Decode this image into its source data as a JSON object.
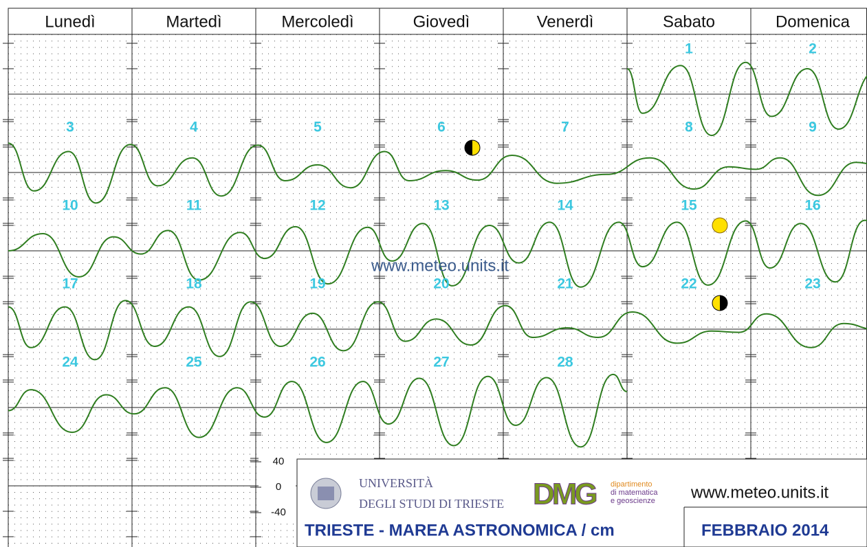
{
  "weekdays": [
    "Lunedì",
    "Martedì",
    "Mercoledì",
    "Giovedì",
    "Venerdì",
    "Sabato",
    "Domenica"
  ],
  "days": [
    {
      "label": "1",
      "curve": [
        [
          0,
          40
        ],
        [
          3,
          -30
        ],
        [
          10.4,
          45
        ],
        [
          16.4,
          -65
        ],
        [
          23,
          50
        ]
      ]
    },
    {
      "label": "2",
      "curve": [
        [
          4,
          -35
        ],
        [
          11,
          40
        ],
        [
          17,
          -55
        ],
        [
          24,
          35
        ]
      ]
    },
    {
      "label": "3",
      "curve": [
        [
          0,
          46
        ],
        [
          5,
          -29
        ],
        [
          11.7,
          33
        ],
        [
          17,
          -48
        ],
        [
          23.7,
          44
        ]
      ]
    },
    {
      "label": "4",
      "curve": [
        [
          5,
          -21
        ],
        [
          11.7,
          23
        ],
        [
          17.3,
          -37
        ]
      ]
    },
    {
      "label": "5",
      "curve": [
        [
          0.4,
          43
        ],
        [
          5.7,
          -13
        ],
        [
          12,
          12
        ],
        [
          18.4,
          -24
        ]
      ]
    },
    {
      "label": "6",
      "curve": [
        [
          1,
          33
        ],
        [
          5.7,
          -13
        ],
        [
          12.8,
          3
        ],
        [
          19,
          -12
        ]
      ]
    },
    {
      "label": "7",
      "curve": [
        [
          1.7,
          27
        ],
        [
          10.4,
          -17
        ],
        [
          20,
          -3
        ]
      ]
    },
    {
      "label": "8",
      "curve": [
        [
          4.4,
          23
        ],
        [
          13,
          -26
        ],
        [
          19.7,
          9
        ]
      ]
    },
    {
      "label": "9",
      "curve": [
        [
          1,
          5
        ],
        [
          5.7,
          23
        ],
        [
          13,
          -36
        ],
        [
          20.4,
          16
        ],
        [
          24,
          13
        ]
      ]
    },
    {
      "label": "10",
      "curve": [
        [
          0,
          0
        ],
        [
          6.7,
          27
        ],
        [
          13.7,
          -41
        ],
        [
          20.4,
          22
        ]
      ]
    },
    {
      "label": "11",
      "curve": [
        [
          1.7,
          -5
        ],
        [
          7,
          32
        ],
        [
          13,
          -46
        ],
        [
          21,
          29
        ]
      ]
    },
    {
      "label": "12",
      "curve": [
        [
          1.7,
          -12
        ],
        [
          7.7,
          38
        ],
        [
          14,
          -52
        ],
        [
          21.7,
          37
        ]
      ]
    },
    {
      "label": "13",
      "curve": [
        [
          2.4,
          -16
        ],
        [
          8.4,
          43
        ],
        [
          14.1,
          -55
        ],
        [
          21.3,
          40
        ]
      ]
    },
    {
      "label": "14",
      "curve": [
        [
          3,
          -19
        ],
        [
          9,
          45
        ],
        [
          15,
          -57
        ],
        [
          22.4,
          45
        ]
      ]
    },
    {
      "label": "15",
      "curve": [
        [
          3,
          -25
        ],
        [
          9.7,
          45
        ],
        [
          15.7,
          -54
        ],
        [
          23,
          47
        ]
      ]
    },
    {
      "label": "16",
      "curve": [
        [
          3.7,
          -27
        ],
        [
          9.7,
          43
        ],
        [
          16.4,
          -49
        ],
        [
          22.1,
          48
        ],
        [
          24,
          44
        ]
      ]
    },
    {
      "label": "17",
      "curve": [
        [
          0,
          35
        ],
        [
          4.4,
          -29
        ],
        [
          11,
          35
        ],
        [
          16.8,
          -48
        ],
        [
          22.7,
          45
        ]
      ]
    },
    {
      "label": "18",
      "curve": [
        [
          4.4,
          -27
        ],
        [
          11,
          35
        ],
        [
          17,
          -43
        ],
        [
          23,
          43
        ]
      ]
    },
    {
      "label": "19",
      "curve": [
        [
          4.8,
          -27
        ],
        [
          11,
          25
        ],
        [
          17,
          -34
        ],
        [
          23.7,
          43
        ]
      ]
    },
    {
      "label": "20",
      "curve": [
        [
          5,
          -19
        ],
        [
          11,
          16
        ],
        [
          17.7,
          -25
        ]
      ]
    },
    {
      "label": "21",
      "curve": [
        [
          0.4,
          37
        ],
        [
          5.7,
          -13
        ],
        [
          12.4,
          2
        ],
        [
          18.4,
          -13
        ]
      ]
    },
    {
      "label": "22",
      "curve": [
        [
          1,
          27
        ],
        [
          9.7,
          -22
        ],
        [
          16.4,
          -3
        ],
        [
          21.7,
          -5
        ]
      ]
    },
    {
      "label": "23",
      "curve": [
        [
          3,
          24
        ],
        [
          11.7,
          -29
        ],
        [
          18,
          9
        ],
        [
          24,
          0
        ]
      ]
    },
    {
      "label": "24",
      "curve": [
        [
          0,
          -5
        ],
        [
          4.4,
          28
        ],
        [
          12.4,
          -39
        ],
        [
          19,
          20
        ]
      ]
    },
    {
      "label": "25",
      "curve": [
        [
          0.4,
          -10
        ],
        [
          6.4,
          31
        ],
        [
          13,
          -47
        ],
        [
          20.4,
          31
        ]
      ]
    },
    {
      "label": "26",
      "curve": [
        [
          1.7,
          -15
        ],
        [
          7,
          41
        ],
        [
          13.7,
          -55
        ],
        [
          20.8,
          41
        ]
      ]
    },
    {
      "label": "27",
      "curve": [
        [
          1.7,
          -26
        ],
        [
          7.7,
          46
        ],
        [
          14.4,
          -60
        ],
        [
          21,
          49
        ]
      ]
    },
    {
      "label": "28",
      "curve": [
        [
          2.4,
          -28
        ],
        [
          8.4,
          47
        ],
        [
          15,
          -62
        ],
        [
          21.3,
          52
        ],
        [
          24,
          25
        ]
      ]
    }
  ],
  "scale": {
    "ticks": [
      40,
      0,
      -40
    ]
  },
  "watermark": "www.meteo.units.it",
  "footer": {
    "university": [
      "UNIVERSITÀ",
      "DEGLI STUDI DI TRIESTE"
    ],
    "logo": "DMG",
    "department": [
      "dipartimento",
      "di matematica",
      "e geoscienze"
    ],
    "website": "www.meteo.units.it",
    "title": "TRIESTE - MAREA ASTRONOMICA / cm",
    "month": "FEBBRAIO 2014"
  }
}
